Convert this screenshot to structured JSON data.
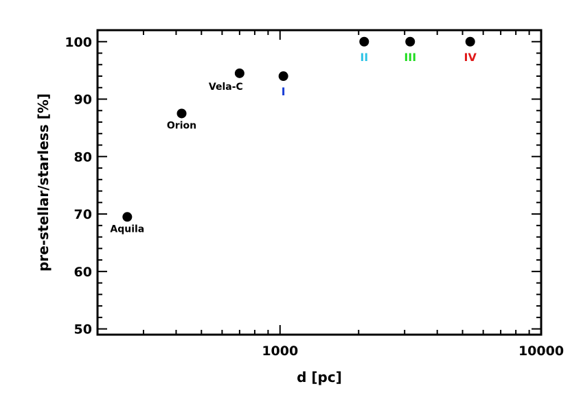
{
  "chart_data": {
    "type": "scatter",
    "xlabel": "d [pc]",
    "ylabel": "pre-stellar/starless [%]",
    "xscale": "log",
    "xlim": [
      200,
      10000
    ],
    "ylim": [
      49,
      102
    ],
    "grid": false,
    "xticks": [
      {
        "value": 1000,
        "label": "1000"
      },
      {
        "value": 10000,
        "label": "10000"
      }
    ],
    "yticks": [
      {
        "value": 50,
        "label": "50"
      },
      {
        "value": 60,
        "label": "60"
      },
      {
        "value": 70,
        "label": "70"
      },
      {
        "value": 80,
        "label": "80"
      },
      {
        "value": 90,
        "label": "90"
      },
      {
        "value": 100,
        "label": "100"
      }
    ],
    "points": [
      {
        "x": 260,
        "y": 69.5,
        "label": "Aquila",
        "label_color": "#000000",
        "label_pos": "below"
      },
      {
        "x": 420,
        "y": 87.5,
        "label": "Orion",
        "label_color": "#000000",
        "label_pos": "below"
      },
      {
        "x": 700,
        "y": 94.5,
        "label": "Vela-C",
        "label_color": "#000000",
        "label_pos": "below-left"
      },
      {
        "x": 1030,
        "y": 94.0,
        "label": "I",
        "label_color": "#1a3fd6",
        "label_pos": "below"
      },
      {
        "x": 2100,
        "y": 100.0,
        "label": "II",
        "label_color": "#2ec4e6",
        "label_pos": "below"
      },
      {
        "x": 3150,
        "y": 100.0,
        "label": "III",
        "label_color": "#22dd22",
        "label_pos": "below"
      },
      {
        "x": 5350,
        "y": 100.0,
        "label": "IV",
        "label_color": "#e01a1a",
        "label_pos": "below"
      }
    ]
  }
}
